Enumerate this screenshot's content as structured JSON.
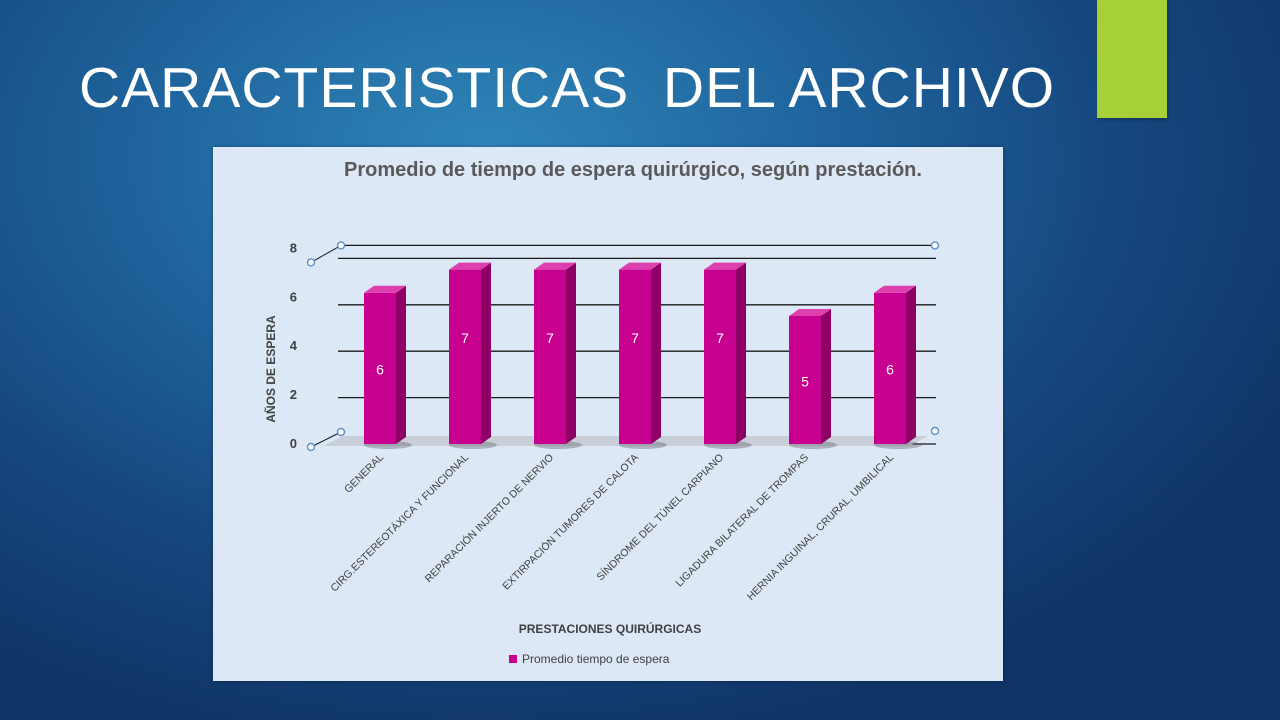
{
  "slide": {
    "title": "CARACTERISTICAS  DEL ARCHIVO",
    "accent_color": "#a6cf38"
  },
  "chart_data": {
    "type": "bar",
    "title": "Promedio de tiempo de espera quirúrgico, según prestación.",
    "xlabel": "PRESTACIONES QUIRÚRGICAS",
    "ylabel": "AÑOS DE ESPERA",
    "categories": [
      "GENERAL",
      "CIRG.ESTEREOTÁXICA Y FUNCIONAL",
      "REPARACIÓN INJERTO DE NERVIO",
      "EXTIRPACIÓN TUMORES DE CALOTA",
      "SÍNDROME DEL TÚNEL CARPIANO",
      "LIGADURA BILATERAL DE TROMPAS",
      "HERNIA INGUINAL, CRURAL, UMBILICAL"
    ],
    "series": [
      {
        "name": "Promedio tiempo de espera",
        "values": [
          6,
          7,
          7,
          7,
          7,
          5,
          6
        ],
        "color": "#c8008f"
      }
    ],
    "data_labels": [
      "6",
      "7",
      "7",
      "7",
      "7",
      "5",
      "6"
    ],
    "yticks": [
      "0",
      "2",
      "4",
      "6",
      "8"
    ],
    "ylim": [
      0,
      8
    ],
    "grid": true,
    "legend": "bottom"
  }
}
